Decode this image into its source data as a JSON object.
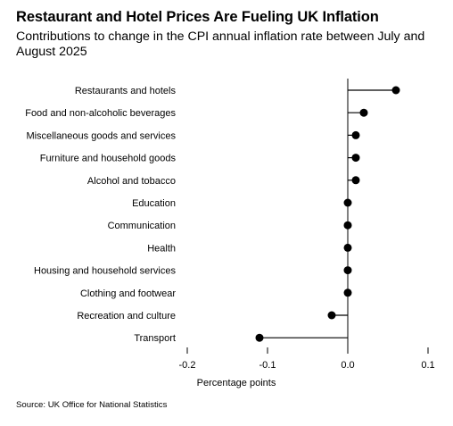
{
  "title": "Restaurant and Hotel Prices Are Fueling UK Inflation",
  "subtitle": "Contributions to change in the CPI annual inflation rate between July and August 2025",
  "source": "Source: UK Office for National Statistics",
  "colors": {
    "marker": "#000000",
    "axis": "#000000"
  },
  "chart_data": {
    "type": "lollipop",
    "title": "Restaurant and Hotel Prices Are Fueling UK Inflation",
    "subtitle": "Contributions to change in the CPI annual inflation rate between July and August 2025",
    "xlabel": "Percentage points",
    "xlim": [
      -0.2,
      0.1
    ],
    "xticks": [
      -0.2,
      -0.1,
      0.0,
      0.1
    ],
    "xtick_labels": [
      "-0.2",
      "-0.1",
      "0.0",
      "0.1"
    ],
    "grid": false,
    "categories": [
      "Restaurants and hotels",
      "Food and non-alcoholic beverages",
      "Miscellaneous goods and services",
      "Furniture and household goods",
      "Alcohol and tobacco",
      "Education",
      "Communication",
      "Health",
      "Housing and household services",
      "Clothing and footwear",
      "Recreation and culture",
      "Transport"
    ],
    "values": [
      0.06,
      0.02,
      0.01,
      0.01,
      0.01,
      0.0,
      0.0,
      0.0,
      0.0,
      0.0,
      -0.02,
      -0.11
    ]
  }
}
